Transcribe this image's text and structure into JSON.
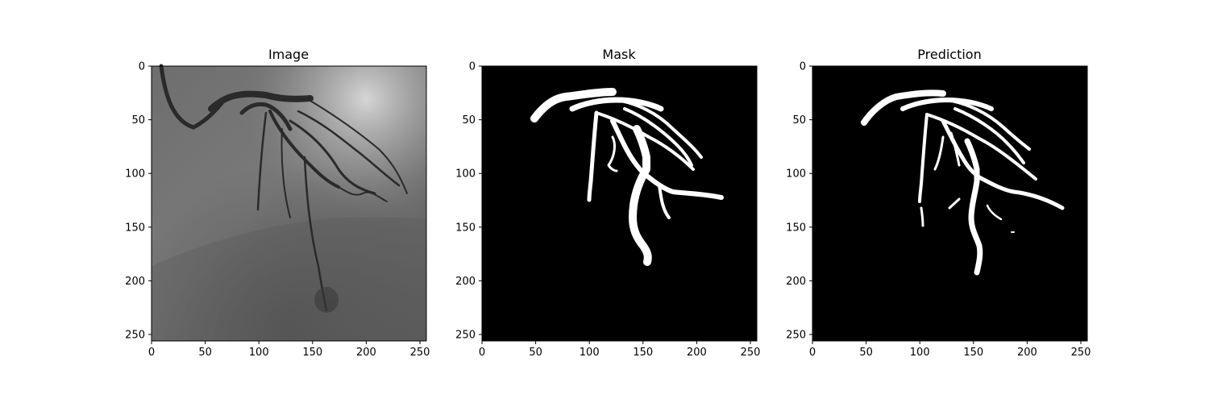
{
  "figure": {
    "panels": [
      {
        "title": "Image",
        "kind": "angiogram"
      },
      {
        "title": "Mask",
        "kind": "mask"
      },
      {
        "title": "Prediction",
        "kind": "prediction"
      }
    ],
    "axis": {
      "x_ticks": [
        "0",
        "50",
        "100",
        "150",
        "200",
        "250"
      ],
      "y_ticks": [
        "0",
        "50",
        "100",
        "150",
        "200",
        "250"
      ]
    }
  }
}
